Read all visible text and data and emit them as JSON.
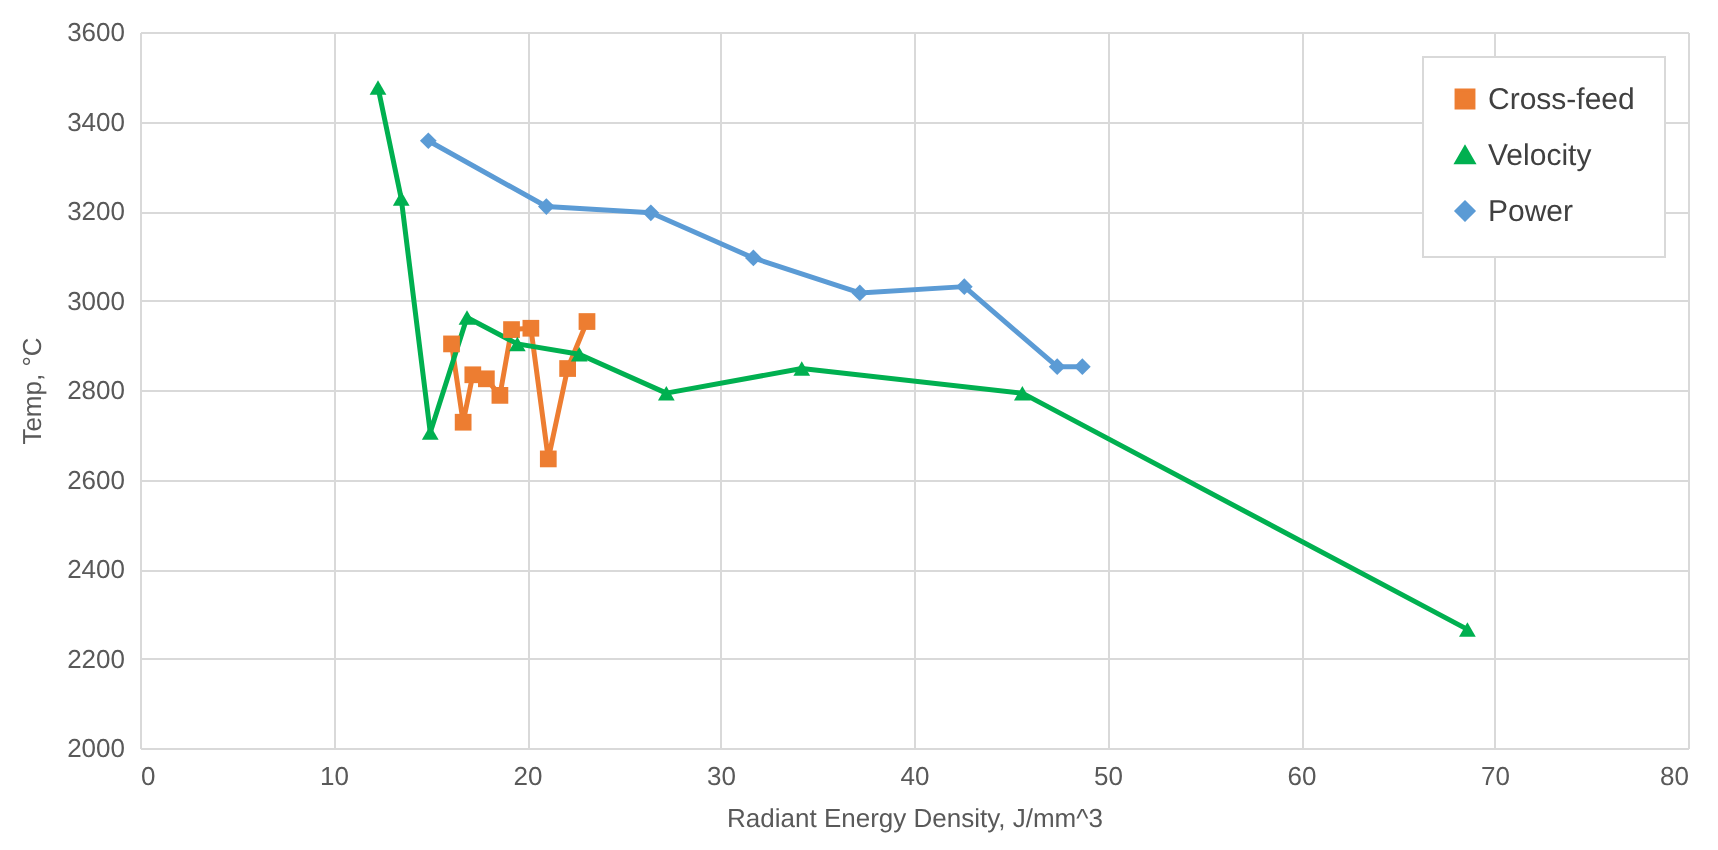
{
  "chart_data": {
    "type": "line",
    "xlabel": "Radiant Energy Density, J/mm^3",
    "ylabel": "Temp, °C",
    "xlim": [
      0,
      80
    ],
    "xticks": [
      0,
      10,
      20,
      30,
      40,
      50,
      60,
      70,
      80
    ],
    "ylim": [
      2000,
      3600
    ],
    "yticks": [
      2000,
      2200,
      2400,
      2600,
      2800,
      3000,
      3200,
      3400,
      3600
    ],
    "grid": true,
    "legend": "top right",
    "line_style": "solid",
    "series": [
      {
        "name": "Cross-feed",
        "color": "#ed7d31",
        "marker": "square",
        "x": [
          16.1,
          16.7,
          17.2,
          17.9,
          18.6,
          19.2,
          20.2,
          21.1,
          22.1,
          23.1
        ],
        "values": [
          2903,
          2728,
          2834,
          2825,
          2788,
          2935,
          2938,
          2646,
          2848,
          2953
        ]
      },
      {
        "name": "Velocity",
        "color": "#00b050",
        "marker": "triangle",
        "x": [
          12.3,
          13.5,
          15.0,
          16.9,
          19.5,
          22.7,
          27.2,
          34.2,
          45.6,
          68.6
        ],
        "values": [
          3476,
          3228,
          2705,
          2962,
          2903,
          2880,
          2793,
          2848,
          2793,
          2265
        ]
      },
      {
        "name": "Power",
        "color": "#5b9bd5",
        "marker": "diamond",
        "x": [
          14.9,
          21.0,
          26.4,
          31.7,
          37.2,
          42.6,
          47.4,
          48.7
        ],
        "values": [
          3357,
          3210,
          3196,
          3095,
          3017,
          3031,
          2852,
          2852
        ]
      }
    ]
  }
}
